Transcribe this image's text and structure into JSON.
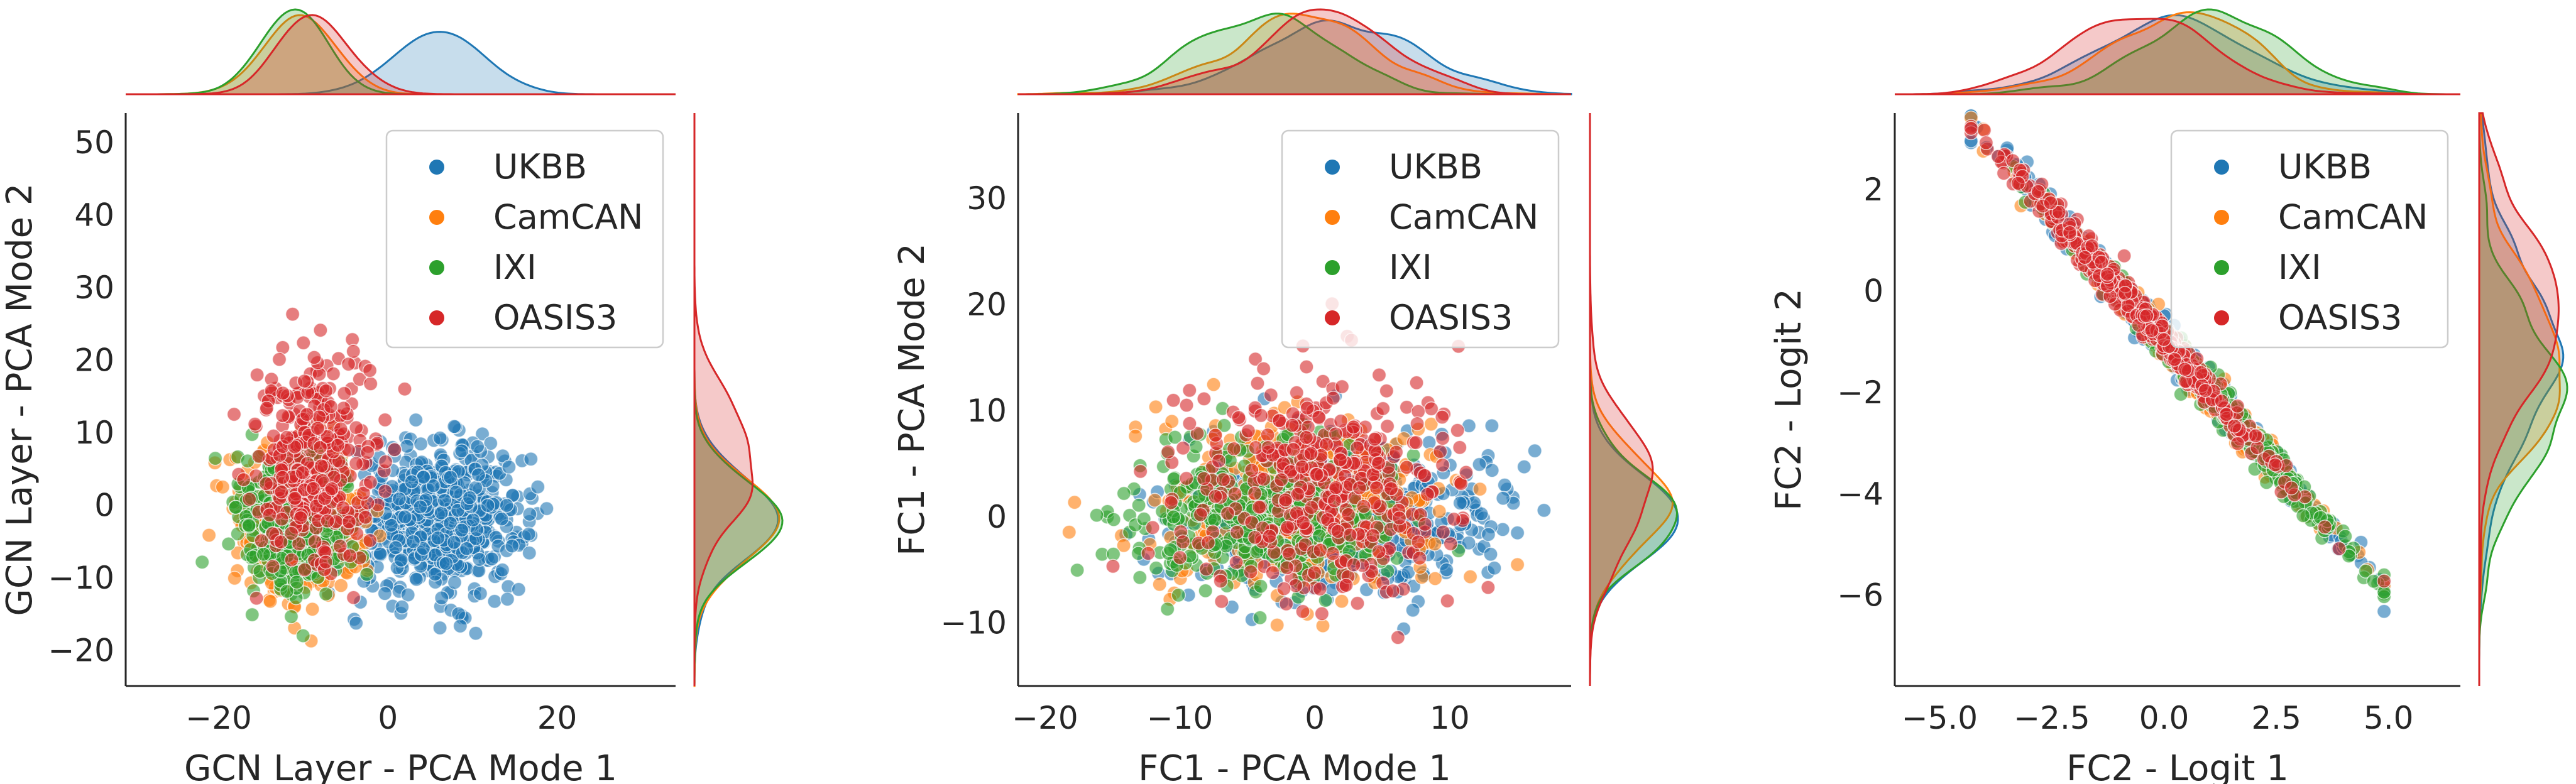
{
  "colors": {
    "UKBB": "#1f77b4",
    "CamCAN": "#ff7f0e",
    "IXI": "#2ca02c",
    "OASIS3": "#d62728",
    "axis": "#262626",
    "legend_border": "#cccccc"
  },
  "chart_data": [
    {
      "type": "scatter",
      "title": "",
      "xlabel": "GCN Layer - PCA Mode 1",
      "ylabel": "GCN Layer - PCA Mode 2",
      "xlim": [
        -31,
        34
      ],
      "ylim": [
        -25,
        54
      ],
      "xticks": [
        -20,
        0,
        20
      ],
      "yticks": [
        -20,
        -10,
        0,
        10,
        20,
        30,
        40,
        50
      ],
      "grid": false,
      "legend": "top-right",
      "marginals": "kde",
      "series": [
        {
          "name": "UKBB",
          "n": 650,
          "mean": [
            6,
            -2
          ],
          "sd": [
            5,
            5
          ],
          "corr": 0.0
        },
        {
          "name": "CamCAN",
          "n": 450,
          "mean": [
            -10,
            -2
          ],
          "sd": [
            3.5,
            5
          ],
          "corr": 0.0
        },
        {
          "name": "IXI",
          "n": 400,
          "mean": [
            -11,
            -2
          ],
          "sd": [
            3.5,
            5
          ],
          "corr": 0.0
        },
        {
          "name": "OASIS3",
          "n": 350,
          "mean": [
            -9,
            6
          ],
          "sd": [
            3.5,
            7
          ],
          "corr": 0.0
        }
      ]
    },
    {
      "type": "scatter",
      "title": "",
      "xlabel": "FC1 - PCA Mode 1",
      "ylabel": "FC1 - PCA Mode 2",
      "xlim": [
        -22,
        19
      ],
      "ylim": [
        -16,
        38
      ],
      "xticks": [
        -20,
        -10,
        0,
        10
      ],
      "yticks": [
        -10,
        0,
        10,
        20,
        30
      ],
      "grid": false,
      "legend": "top-right",
      "marginals": "kde",
      "series": [
        {
          "name": "UKBB",
          "n": 650,
          "mean": [
            2,
            0
          ],
          "sd": [
            5.5,
            3.5
          ],
          "corr": 0.0
        },
        {
          "name": "CamCAN",
          "n": 400,
          "mean": [
            -1,
            1
          ],
          "sd": [
            5,
            4
          ],
          "corr": 0.0
        },
        {
          "name": "IXI",
          "n": 400,
          "mean": [
            -4,
            0
          ],
          "sd": [
            5,
            3.5
          ],
          "corr": 0.0
        },
        {
          "name": "OASIS3",
          "n": 400,
          "mean": [
            0,
            3
          ],
          "sd": [
            5,
            5
          ],
          "corr": 0.0
        }
      ]
    },
    {
      "type": "scatter",
      "title": "",
      "xlabel": "FC2 - Logit 1",
      "ylabel": "FC2 - Logit 2",
      "xlim": [
        -6,
        6.6
      ],
      "ylim": [
        -7.8,
        3.5
      ],
      "xticks": [
        -5.0,
        -2.5,
        0.0,
        2.5,
        5.0
      ],
      "xtick_labels": [
        "−5.0",
        "−2.5",
        "0.0",
        "2.5",
        "5.0"
      ],
      "yticks": [
        -6,
        -4,
        -2,
        0,
        2
      ],
      "grid": false,
      "legend": "top-right",
      "marginals": "kde",
      "line_fit": {
        "slope": -1.0,
        "intercept": -1.0,
        "spread": 0.18
      },
      "series": [
        {
          "name": "UKBB",
          "n": 650,
          "mean_x": 0.3,
          "sd_x": 1.7
        },
        {
          "name": "CamCAN",
          "n": 400,
          "mean_x": 0.3,
          "sd_x": 1.6
        },
        {
          "name": "IXI",
          "n": 400,
          "mean_x": 1.0,
          "sd_x": 1.6
        },
        {
          "name": "OASIS3",
          "n": 400,
          "mean_x": -0.5,
          "sd_x": 1.6
        }
      ]
    }
  ]
}
